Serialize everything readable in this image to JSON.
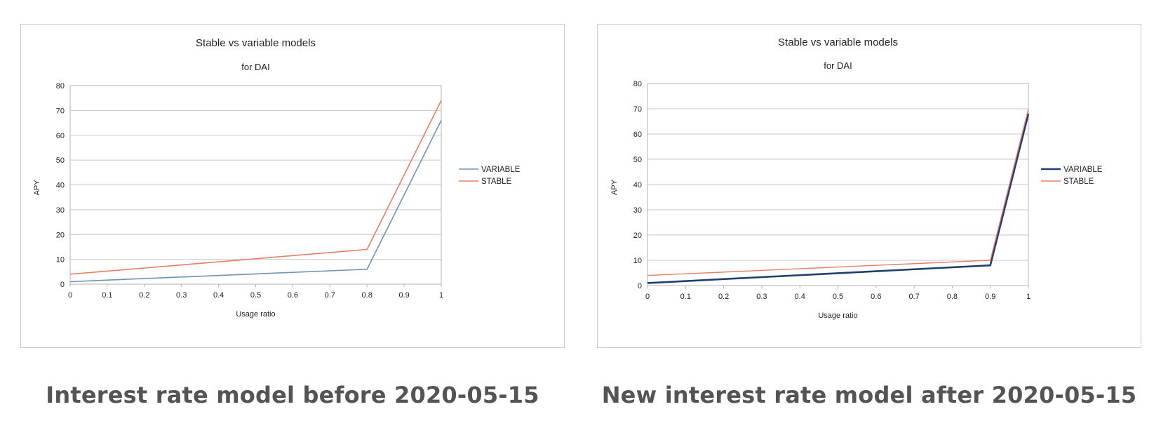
{
  "colors": {
    "variable_before": "#6f93b5",
    "stable_before": "#e77e66",
    "variable_after": "#1f3f6e",
    "stable_after": "#e77e66",
    "grid": "#c8c8c8",
    "axis": "#b3b3b3",
    "caption": "#545454"
  },
  "captions": [
    "Interest rate model before 2020-05-15",
    "New interest rate model after 2020-05-15"
  ],
  "chart_data": [
    {
      "type": "line",
      "title": "Stable vs variable models",
      "subtitle": "for DAI",
      "xlabel": "Usage ratio",
      "ylabel": "APY",
      "xlim": [
        0,
        1
      ],
      "ylim": [
        0,
        80
      ],
      "xticks": [
        "0",
        "0.1",
        "0.2",
        "0.3",
        "0.4",
        "0.5",
        "0.6",
        "0.7",
        "0.8",
        "0.9",
        "1"
      ],
      "yticks": [
        "0",
        "10",
        "20",
        "30",
        "40",
        "50",
        "60",
        "70",
        "80"
      ],
      "grid": true,
      "legend_position": "right",
      "series": [
        {
          "name": "VARIABLE",
          "x": [
            0,
            0.8,
            1
          ],
          "y": [
            1,
            6,
            66
          ]
        },
        {
          "name": "STABLE",
          "x": [
            0,
            0.8,
            1
          ],
          "y": [
            4,
            14,
            74
          ]
        }
      ]
    },
    {
      "type": "line",
      "title": "Stable vs variable models",
      "subtitle": "for DAI",
      "xlabel": "Usage ratio",
      "ylabel": "APY",
      "xlim": [
        0,
        1
      ],
      "ylim": [
        0,
        80
      ],
      "xticks": [
        "0",
        "0.1",
        "0.2",
        "0.3",
        "0.4",
        "0.5",
        "0.6",
        "0.7",
        "0.8",
        "0.9",
        "1"
      ],
      "yticks": [
        "0",
        "10",
        "20",
        "30",
        "40",
        "50",
        "60",
        "70",
        "80"
      ],
      "grid": true,
      "legend_position": "right",
      "series": [
        {
          "name": "VARIABLE",
          "x": [
            0,
            0.9,
            1
          ],
          "y": [
            1,
            8,
            68
          ]
        },
        {
          "name": "STABLE",
          "x": [
            0,
            0.9,
            1
          ],
          "y": [
            4,
            10,
            70
          ]
        }
      ]
    }
  ]
}
